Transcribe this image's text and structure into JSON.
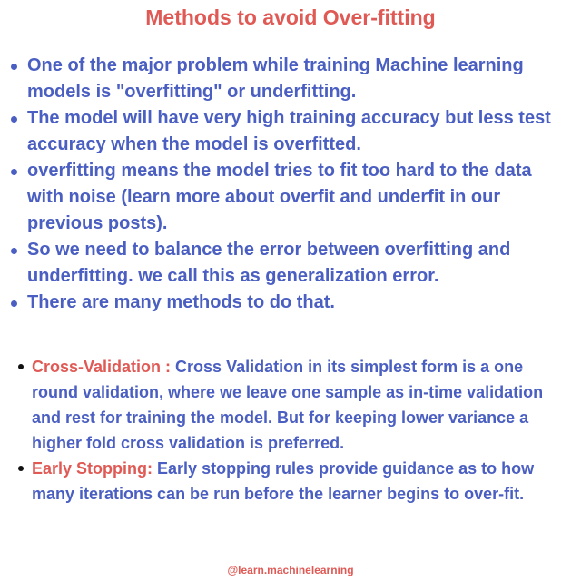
{
  "title": "Methods to avoid Over-fitting",
  "bullets": [
    "One of the major problem while training Machine learning models is \"overfitting\" or underfitting.",
    "The model will have very high training accuracy but less test accuracy when the model is overfitted.",
    "overfitting means the model tries to fit too hard to the data with noise (learn more about overfit and underfit in our previous posts).",
    "So we need to balance the error between overfitting and underfitting. we call this as generalization error.",
    "There are many methods to do that."
  ],
  "methods": [
    {
      "name": "Cross-Validation :",
      "description": "Cross Validation in its simplest form is a one round validation, where we leave one sample as in-time validation and rest for training the model. But for keeping lower variance a higher fold cross validation is preferred."
    },
    {
      "name": "Early Stopping:",
      "description": "Early stopping rules provide guidance as to how many iterations can be run before the learner begins to over-fit."
    }
  ],
  "footer": "@learn.machinelearning"
}
